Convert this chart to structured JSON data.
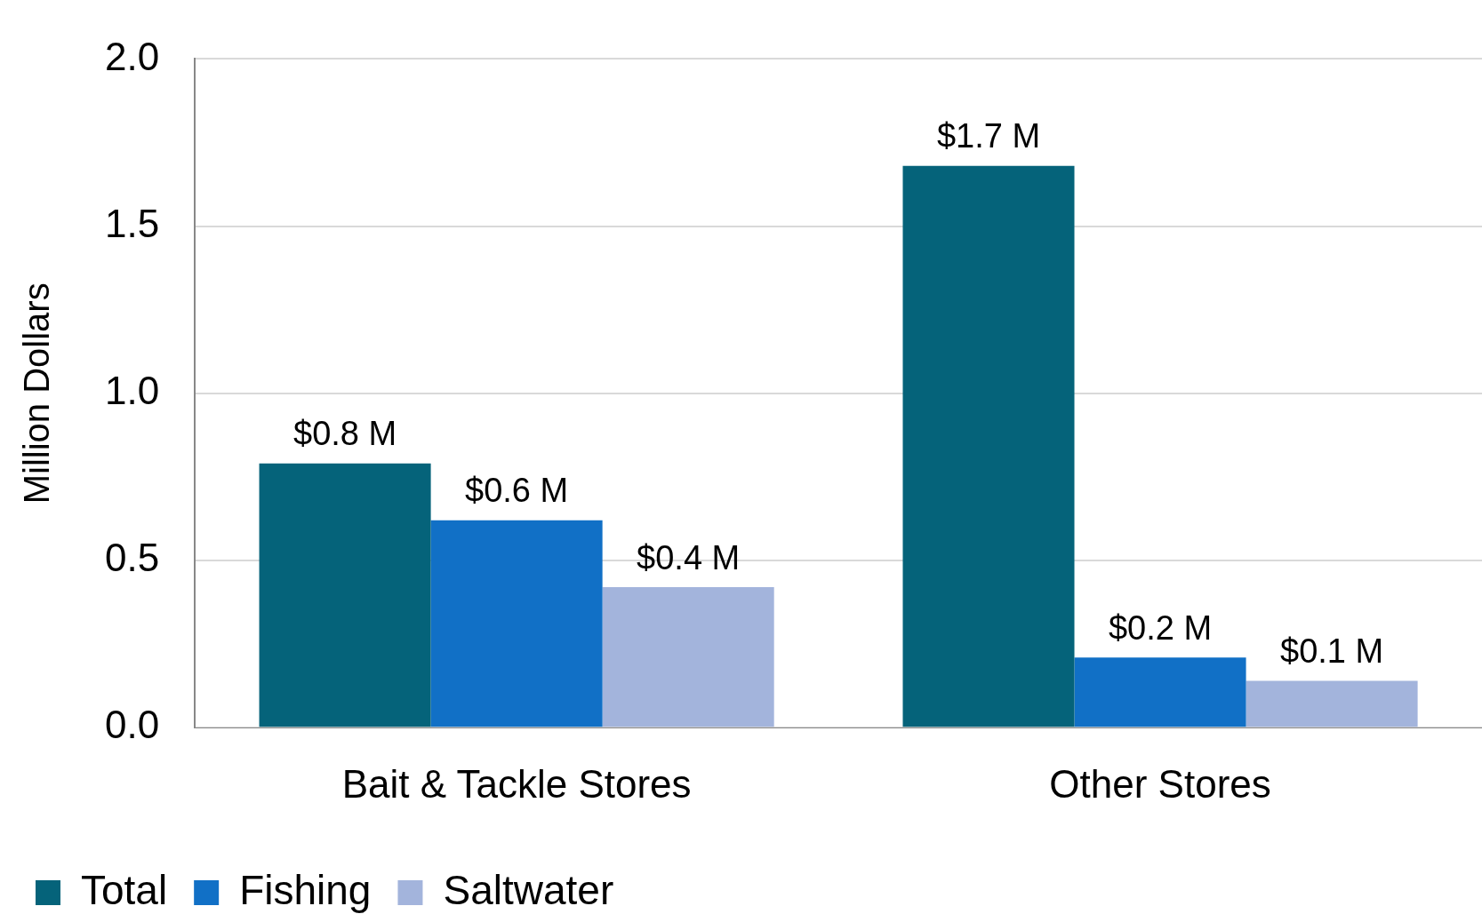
{
  "chart_data": {
    "type": "bar",
    "ylabel": "Million Dollars",
    "categories": [
      "Bait & Tackle Stores",
      "Other Stores"
    ],
    "series": [
      {
        "name": "Total",
        "color": "#05637a",
        "values": [
          0.79,
          1.68
        ],
        "value_labels": [
          "$0.8 M",
          "$1.7 M"
        ]
      },
      {
        "name": "Fishing",
        "color": "#1170c6",
        "values": [
          0.62,
          0.21
        ],
        "value_labels": [
          "$0.6 M",
          "$0.2 M"
        ]
      },
      {
        "name": "Saltwater",
        "color": "#a3b4dc",
        "values": [
          0.42,
          0.14
        ],
        "value_labels": [
          "$0.4 M",
          "$0.1 M"
        ]
      }
    ],
    "ylim": [
      0,
      2
    ],
    "yticks": [
      {
        "value": 0,
        "label": "0.0"
      },
      {
        "value": 0.5,
        "label": "0.5"
      },
      {
        "value": 1,
        "label": "1.0"
      },
      {
        "value": 1.5,
        "label": "1.5"
      },
      {
        "value": 2,
        "label": "2.0"
      }
    ],
    "grid": "y",
    "legend": "bottom left"
  }
}
